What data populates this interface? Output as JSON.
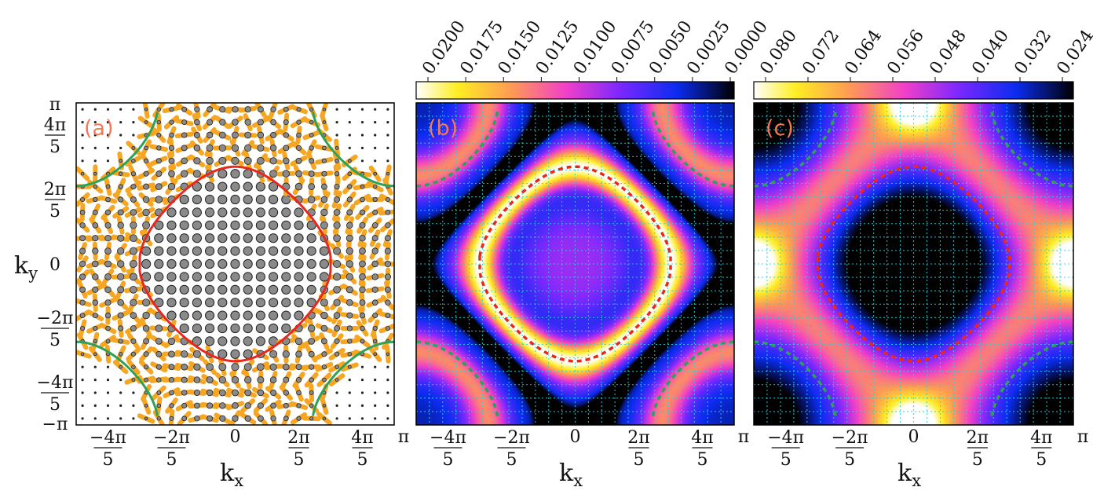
{
  "chart_data": [
    {
      "panel": "(a)",
      "type": "scatter",
      "subtype": "vector-field",
      "xlabel": "kx",
      "ylabel": "ky",
      "xlim": [
        -3.1416,
        3.1416
      ],
      "ylim": [
        -3.1416,
        3.1416
      ],
      "x_ticks": [
        {
          "value": -2.5133,
          "label": "−4π/5"
        },
        {
          "value": -1.2566,
          "label": "−2π/5"
        },
        {
          "value": 0,
          "label": "0"
        },
        {
          "value": 1.2566,
          "label": "2π/5"
        },
        {
          "value": 2.5133,
          "label": "4π/5"
        },
        {
          "value": 3.1416,
          "label": "π"
        }
      ],
      "y_ticks": [
        {
          "value": 3.1416,
          "label": "π"
        },
        {
          "value": 2.5133,
          "label": "4π/5"
        },
        {
          "value": 1.2566,
          "label": "2π/5"
        },
        {
          "value": 0,
          "label": "0"
        },
        {
          "value": -1.2566,
          "label": "−2π/5"
        },
        {
          "value": -2.5133,
          "label": "−4π/5"
        },
        {
          "value": -3.1416,
          "label": "−π"
        }
      ],
      "grid_points": 25,
      "fermi_surface_red": {
        "kind": "rounded-diamond",
        "center": [
          0,
          0
        ],
        "half_diagonal": 2.25
      },
      "fermi_surface_green": {
        "kind": "corner-arcs",
        "half_diagonal": 4.45
      },
      "marker_colors": {
        "dot": "#8a8a8a",
        "arrow": "#f5a623",
        "red": "#e8281c",
        "green": "#2da05a"
      }
    },
    {
      "panel": "(b)",
      "type": "heatmap",
      "xlabel": "kx",
      "xlim": [
        -3.1416,
        3.1416
      ],
      "ylim": [
        -3.1416,
        3.1416
      ],
      "colorbar": {
        "range": [
          0.0,
          0.0225
        ],
        "ticks": [
          "0.0200",
          "0.0175",
          "0.0150",
          "0.0125",
          "0.0100",
          "0.0075",
          "0.0050",
          "0.0025",
          "0.0000"
        ],
        "colormap": "gnuplot2-reversed"
      },
      "features": {
        "dark_ring_half_diagonal": 3.5,
        "peak_at_fermi_surface": true
      }
    },
    {
      "panel": "(c)",
      "type": "heatmap",
      "xlabel": "kx",
      "xlim": [
        -3.1416,
        3.1416
      ],
      "ylim": [
        -3.1416,
        3.1416
      ],
      "colorbar": {
        "range": [
          0.02,
          0.086
        ],
        "ticks": [
          "0.080",
          "0.072",
          "0.064",
          "0.056",
          "0.048",
          "0.040",
          "0.032",
          "0.024"
        ],
        "colormap": "gnuplot2-reversed"
      },
      "features": {
        "minimum_at": [
          0,
          0
        ],
        "maxima_at": "(±π,0),(0,±π)"
      }
    }
  ],
  "labels": {
    "panel_a": "(a)",
    "panel_b": "(b)",
    "panel_c": "(c)",
    "kx": "k",
    "kx_sub": "x",
    "ky": "k",
    "ky_sub": "y",
    "pi": "π",
    "minus_pi": "−π",
    "zero": "0"
  }
}
